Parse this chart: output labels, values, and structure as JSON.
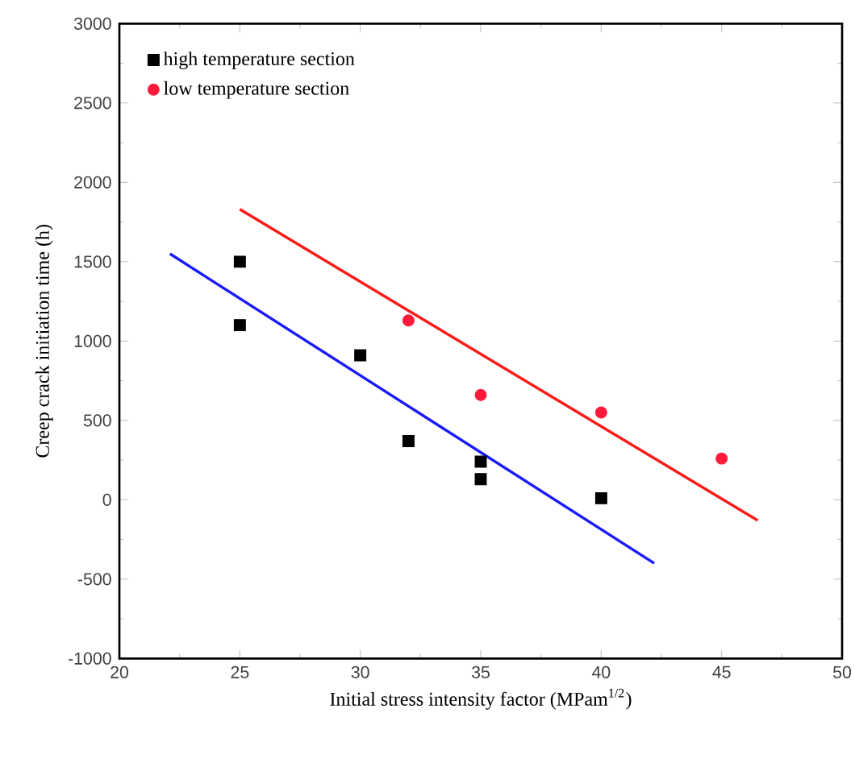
{
  "chart_data": {
    "type": "scatter",
    "xlabel": "Initial stress intensity factor (MPam$^{1/2}$)",
    "ylabel": "Creep crack initiation time (h)",
    "xlim": [
      20,
      50
    ],
    "xticks": [
      20,
      25,
      30,
      35,
      40,
      45,
      50
    ],
    "ylim": [
      -1000,
      3000
    ],
    "yticks": [
      -1000,
      -500,
      0,
      500,
      1000,
      1500,
      2000,
      2500,
      3000
    ],
    "legend": "top left",
    "grid": false,
    "series": [
      {
        "name": "high temperature section",
        "marker": "square",
        "color": "#000000",
        "x": [
          25,
          25,
          30,
          32,
          35,
          35,
          40
        ],
        "values": [
          1500,
          1100,
          910,
          370,
          240,
          130,
          10
        ]
      },
      {
        "name": "low temperature section",
        "marker": "circle",
        "color": "#ff1a3c",
        "x": [
          32,
          35,
          40,
          45
        ],
        "values": [
          1130,
          660,
          550,
          260
        ]
      },
      {
        "type": "line",
        "marker": "none",
        "color": "#1a1aff",
        "x": [
          22.1,
          42.2
        ],
        "values": [
          1550,
          -400
        ]
      },
      {
        "type": "line",
        "marker": "none",
        "color": "#ff1a1a",
        "x": [
          25,
          46.5
        ],
        "values": [
          1830,
          -130
        ]
      }
    ]
  }
}
